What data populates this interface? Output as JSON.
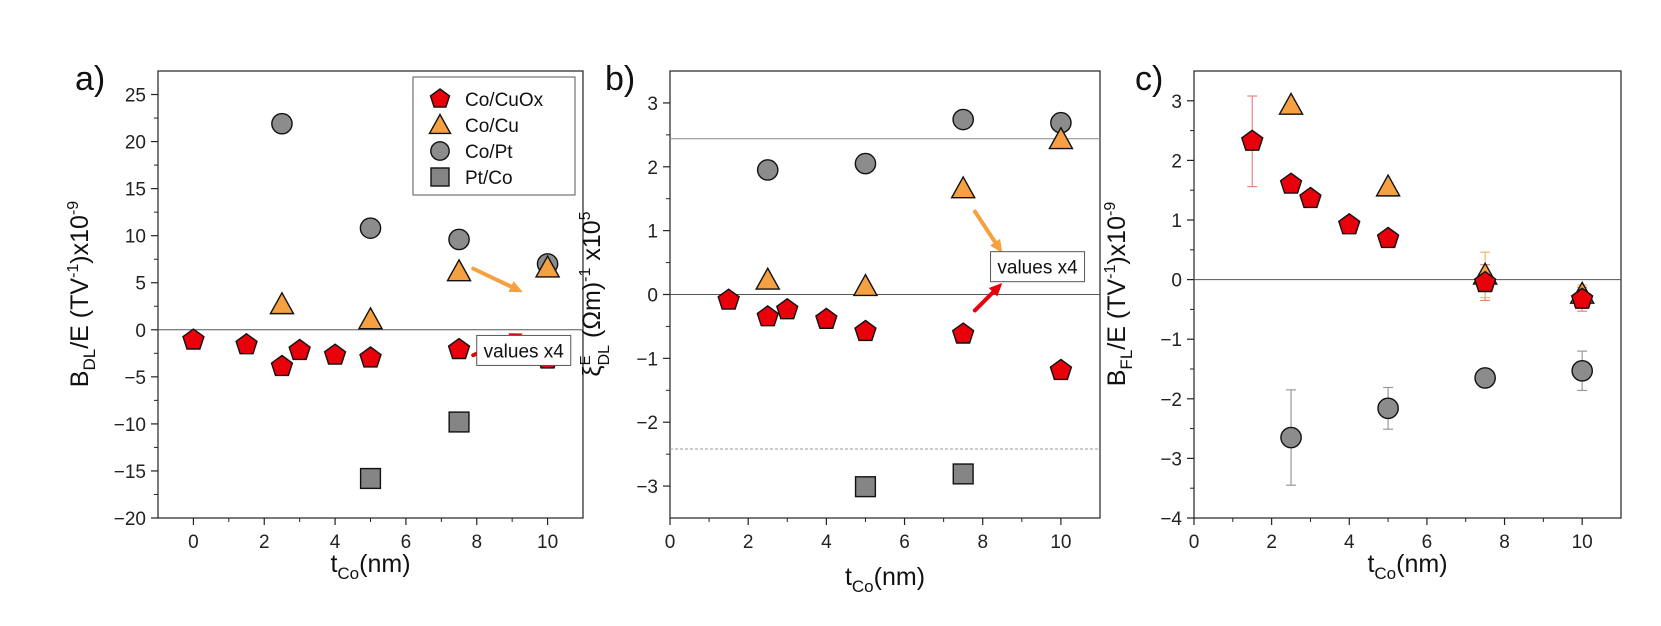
{
  "chart_data": [
    {
      "type": "scatter",
      "panel_label": "a)",
      "xlabel": "t",
      "xlabel_sub": "Co",
      "xlabel_tail": "(nm)",
      "ylabel": {
        "p1": "B",
        "p1_sub": "DL",
        "p2": "/E (TV",
        "p2_sup": "-1",
        "p3": ")x10",
        "p3_sup": "-9"
      },
      "xlim": [
        -1,
        11
      ],
      "ylim": [
        -20,
        27.5
      ],
      "xticks": [
        0,
        2,
        4,
        6,
        8,
        10
      ],
      "yticks": [
        -20,
        -15,
        -10,
        -5,
        0,
        5,
        10,
        15,
        20,
        25
      ],
      "hlines": [
        {
          "y": 0,
          "style": "solid"
        }
      ],
      "legend": {
        "placement": "top-right",
        "entries": [
          {
            "label": "Co/CuOx",
            "marker": "pentagon",
            "color": "#e8000b"
          },
          {
            "label": "Co/Cu",
            "marker": "triangle",
            "color": "#f5a141"
          },
          {
            "label": "Co/Pt",
            "marker": "circle",
            "color": "#8c8c8c"
          },
          {
            "label": "Pt/Co",
            "marker": "square",
            "color": "#858585"
          }
        ]
      },
      "annotation": {
        "text": "values x4",
        "x": 8,
        "y": -2.3
      },
      "arrows": [
        {
          "from": [
            7.9,
            6.5
          ],
          "to": [
            9.3,
            4.0
          ],
          "color": "#f5a141"
        },
        {
          "from": [
            7.9,
            -2.7
          ],
          "to": [
            9.3,
            -0.4
          ],
          "color": "#e8000b"
        }
      ],
      "series": [
        {
          "name": "Co/CuOx",
          "marker": "pentagon",
          "color": "#e8000b",
          "x": [
            0,
            1.5,
            2.5,
            3,
            4,
            5,
            7.5,
            10
          ],
          "y": [
            -1.1,
            -1.6,
            -3.9,
            -2.2,
            -2.7,
            -3.0,
            -2.1,
            -3.1
          ],
          "err": []
        },
        {
          "name": "Co/Cu",
          "marker": "triangle",
          "color": "#f5a141",
          "x": [
            2.5,
            5,
            7.5,
            10
          ],
          "y": [
            2.7,
            1.1,
            6.2,
            6.6
          ],
          "err": []
        },
        {
          "name": "Co/Pt",
          "marker": "circle",
          "color": "#8c8c8c",
          "x": [
            2.5,
            5,
            7.5,
            10
          ],
          "y": [
            21.9,
            10.8,
            9.6,
            7.0
          ],
          "err": []
        },
        {
          "name": "Pt/Co",
          "marker": "square",
          "color": "#858585",
          "x": [
            5,
            7.5
          ],
          "y": [
            -15.8,
            -9.8
          ],
          "err": []
        }
      ]
    },
    {
      "type": "scatter",
      "panel_label": "b)",
      "xlabel": "t",
      "xlabel_sub": "Co",
      "xlabel_tail": "(nm)",
      "ylabel": {
        "p1": "ξ",
        "p1_sup": "E",
        "p1_sub": "DL",
        "p2": " (Ωm)",
        "p2_sup": "-1",
        "p3": " x10",
        "p3_sup": "5"
      },
      "xlim": [
        0,
        11
      ],
      "ylim": [
        -3.5,
        3.5
      ],
      "xticks": [
        0,
        2,
        4,
        6,
        8,
        10
      ],
      "yticks": [
        -3,
        -2,
        -1,
        0,
        1,
        2,
        3
      ],
      "hlines": [
        {
          "y": 0,
          "style": "solid"
        },
        {
          "y": 2.44,
          "style": "solid"
        },
        {
          "y": -2.42,
          "style": "dashed"
        }
      ],
      "annotation": {
        "text": "values x4",
        "x": 8.2,
        "y": 0.42
      },
      "arrows": [
        {
          "from": [
            7.8,
            1.3
          ],
          "to": [
            8.5,
            0.65
          ],
          "color": "#f5a141"
        },
        {
          "from": [
            7.8,
            -0.25
          ],
          "to": [
            8.5,
            0.18
          ],
          "color": "#e8000b"
        }
      ],
      "series": [
        {
          "name": "Co/CuOx",
          "marker": "pentagon",
          "color": "#e8000b",
          "x": [
            1.5,
            2.5,
            3,
            4,
            5,
            7.5,
            10
          ],
          "y": [
            -0.09,
            -0.35,
            -0.24,
            -0.39,
            -0.58,
            -0.62,
            -1.19
          ],
          "err": []
        },
        {
          "name": "Co/Cu",
          "marker": "triangle",
          "color": "#f5a141",
          "x": [
            2.5,
            5,
            7.5,
            10
          ],
          "y": [
            0.23,
            0.13,
            1.66,
            2.43
          ],
          "err": []
        },
        {
          "name": "Co/Pt",
          "marker": "circle",
          "color": "#8c8c8c",
          "x": [
            2.5,
            5,
            7.5,
            10
          ],
          "y": [
            1.95,
            2.05,
            2.74,
            2.69
          ],
          "err": []
        },
        {
          "name": "Pt/Co",
          "marker": "square",
          "color": "#858585",
          "x": [
            5,
            7.5
          ],
          "y": [
            -3.01,
            -2.81
          ],
          "err": []
        }
      ]
    },
    {
      "type": "scatter",
      "panel_label": "c)",
      "xlabel": "t",
      "xlabel_sub": "Co",
      "xlabel_tail": "(nm)",
      "ylabel": {
        "p1": "B",
        "p1_sub": "FL",
        "p2": "/E (TV",
        "p2_sup": "-1",
        "p3": ")x10",
        "p3_sup": "-9"
      },
      "xlim": [
        0,
        11
      ],
      "ylim": [
        -4,
        3.5
      ],
      "xticks": [
        0,
        2,
        4,
        6,
        8,
        10
      ],
      "yticks": [
        -4,
        -3,
        -2,
        -1,
        0,
        1,
        2,
        3
      ],
      "hlines": [
        {
          "y": 0,
          "style": "solid"
        }
      ],
      "series": [
        {
          "name": "Co/CuOx",
          "marker": "pentagon",
          "color": "#e8000b",
          "x": [
            1.5,
            2.5,
            3,
            4,
            5,
            7.5,
            10
          ],
          "y": [
            2.32,
            1.6,
            1.36,
            0.92,
            0.69,
            -0.05,
            -0.33
          ],
          "err": [
            0.76,
            0.07,
            0.05,
            0.05,
            0.05,
            0.3,
            0.2
          ]
        },
        {
          "name": "Co/Cu",
          "marker": "triangle",
          "color": "#f5a141",
          "x": [
            2.5,
            5,
            7.5,
            10
          ],
          "y": [
            2.93,
            1.56,
            0.08,
            -0.24
          ],
          "err": [
            0,
            0,
            0.38,
            0.15
          ]
        },
        {
          "name": "Co/Pt",
          "marker": "circle",
          "color": "#8c8c8c",
          "x": [
            2.5,
            5,
            7.5,
            10
          ],
          "y": [
            -2.65,
            -2.16,
            -1.65,
            -1.53
          ],
          "err": [
            0.8,
            0.35,
            0,
            0.33
          ]
        }
      ]
    }
  ]
}
